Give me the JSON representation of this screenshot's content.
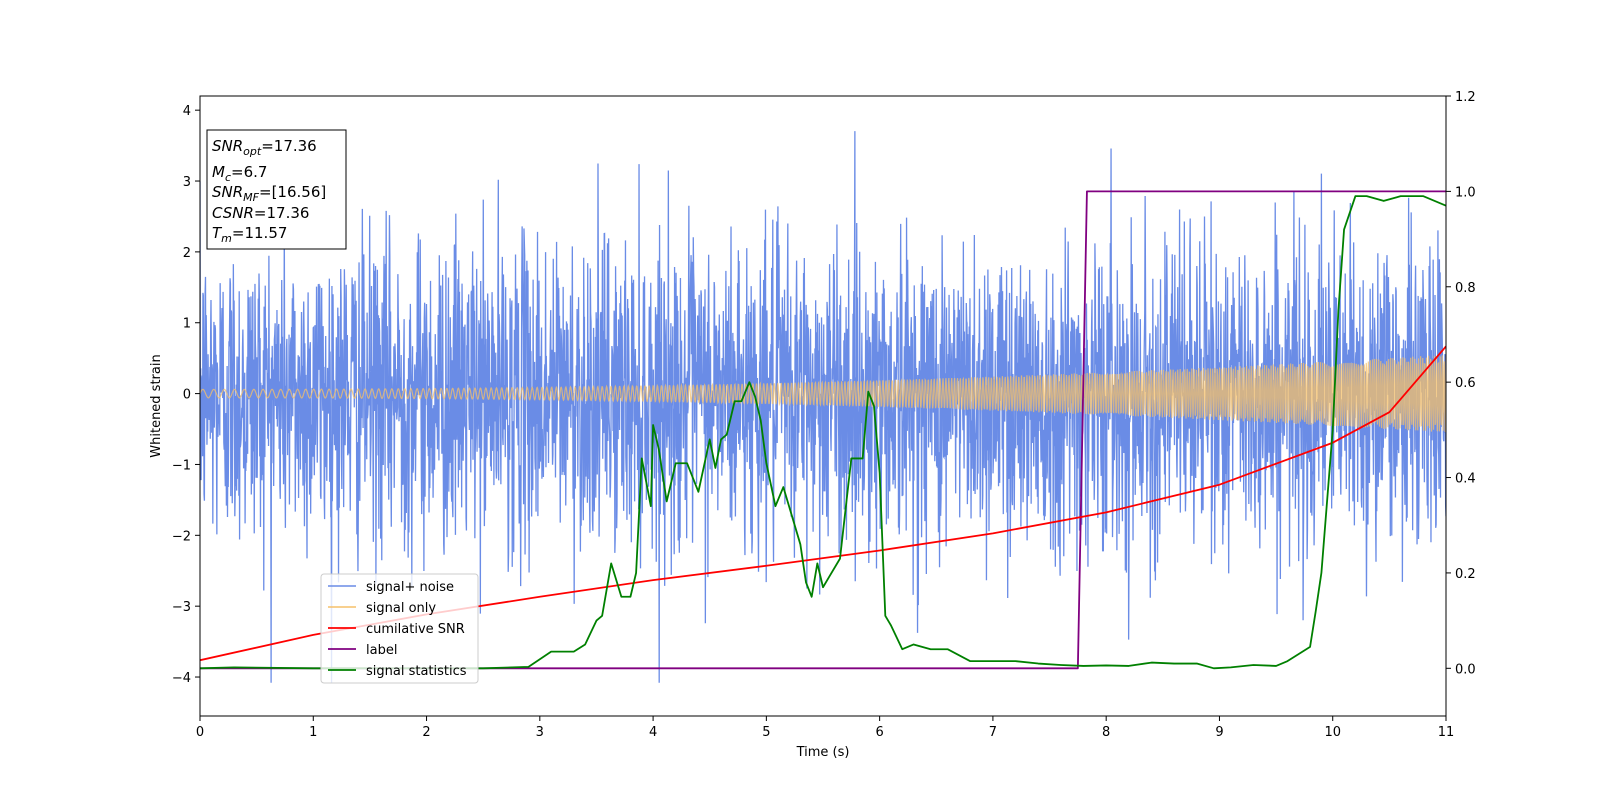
{
  "chart_data": {
    "type": "line",
    "xlabel": "Time (s)",
    "ylabel": "Whitened strain",
    "xlim": [
      0,
      11
    ],
    "ylim": [
      -4.55,
      4.2
    ],
    "y2lim": [
      -0.1,
      1.2
    ],
    "xticks": [
      "0",
      "1",
      "2",
      "3",
      "4",
      "5",
      "6",
      "7",
      "8",
      "9",
      "10",
      "11"
    ],
    "yticks": [
      "4",
      "3",
      "2",
      "1",
      "0",
      "−1",
      "−2",
      "−3",
      "−4"
    ],
    "y2ticks": [
      "1.2",
      "1.0",
      "0.8",
      "0.6",
      "0.4",
      "0.2",
      "0.0"
    ],
    "grid": false,
    "legend_position": "lower-left",
    "info_box": {
      "lines": [
        {
          "sym": "SNR",
          "sub": "opt",
          "value": "=17.36"
        },
        {
          "sym": "M",
          "sub": "c",
          "value": "=6.7"
        },
        {
          "sym": "SNR",
          "sub": "MF",
          "value": "=[16.56]"
        },
        {
          "sym": "CSNR",
          "sub": "",
          "value": "=17.36"
        },
        {
          "sym": "T",
          "sub": "m",
          "value": "=11.57"
        }
      ]
    },
    "series": [
      {
        "name": "signal+ noise",
        "axis": "left",
        "color": "#6a8ce6",
        "noise_envelope": {
          "typical_range": [
            -2.6,
            2.6
          ],
          "max": 3.82,
          "min": -4.08
        }
      },
      {
        "name": "signal only",
        "axis": "left",
        "color": "#f5c06a",
        "chirp": {
          "amplitude_start": 0.06,
          "amplitude_end": 0.55
        }
      },
      {
        "name": "cumilative SNR",
        "axis": "right",
        "color": "#ff0000",
        "x": [
          0,
          1,
          2,
          3,
          4,
          5,
          6,
          7,
          8,
          9,
          10,
          10.5,
          11
        ],
        "y": [
          0.017,
          0.07,
          0.113,
          0.15,
          0.185,
          0.215,
          0.247,
          0.283,
          0.327,
          0.385,
          0.473,
          0.537,
          0.675
        ]
      },
      {
        "name": "label",
        "axis": "right",
        "color": "#800080",
        "x": [
          0,
          7.75,
          7.83,
          11
        ],
        "y": [
          0,
          0,
          1,
          1
        ]
      },
      {
        "name": "signal statistics",
        "axis": "right",
        "color": "#008000",
        "x": [
          0,
          0.3,
          1,
          2,
          2.5,
          2.9,
          3.1,
          3.3,
          3.4,
          3.5,
          3.55,
          3.63,
          3.72,
          3.8,
          3.85,
          3.9,
          3.98,
          4.0,
          4.05,
          4.12,
          4.2,
          4.3,
          4.4,
          4.5,
          4.55,
          4.6,
          4.65,
          4.72,
          4.78,
          4.85,
          4.9,
          4.95,
          5.0,
          5.08,
          5.15,
          5.2,
          5.3,
          5.35,
          5.4,
          5.45,
          5.5,
          5.55,
          5.65,
          5.75,
          5.85,
          5.9,
          5.95,
          6.0,
          6.05,
          6.1,
          6.2,
          6.3,
          6.45,
          6.6,
          6.8,
          7.0,
          7.2,
          7.4,
          7.6,
          7.8,
          8.0,
          8.2,
          8.4,
          8.6,
          8.8,
          8.95,
          9.1,
          9.3,
          9.5,
          9.6,
          9.7,
          9.8,
          9.85,
          9.9,
          9.95,
          10.0,
          10.05,
          10.1,
          10.2,
          10.3,
          10.45,
          10.6,
          10.8,
          11.0
        ],
        "y": [
          0.0,
          0.002,
          0.0,
          0.0,
          0.0,
          0.003,
          0.035,
          0.035,
          0.05,
          0.1,
          0.11,
          0.22,
          0.15,
          0.15,
          0.2,
          0.44,
          0.34,
          0.51,
          0.46,
          0.35,
          0.43,
          0.43,
          0.37,
          0.48,
          0.42,
          0.48,
          0.49,
          0.56,
          0.56,
          0.6,
          0.57,
          0.52,
          0.43,
          0.34,
          0.38,
          0.34,
          0.26,
          0.18,
          0.15,
          0.22,
          0.17,
          0.19,
          0.23,
          0.44,
          0.44,
          0.58,
          0.55,
          0.41,
          0.11,
          0.09,
          0.04,
          0.05,
          0.04,
          0.04,
          0.015,
          0.015,
          0.015,
          0.01,
          0.007,
          0.005,
          0.006,
          0.005,
          0.012,
          0.01,
          0.01,
          0.0,
          0.002,
          0.007,
          0.005,
          0.015,
          0.03,
          0.045,
          0.12,
          0.2,
          0.35,
          0.5,
          0.75,
          0.92,
          0.99,
          0.99,
          0.98,
          0.99,
          0.99,
          0.97
        ]
      }
    ]
  }
}
